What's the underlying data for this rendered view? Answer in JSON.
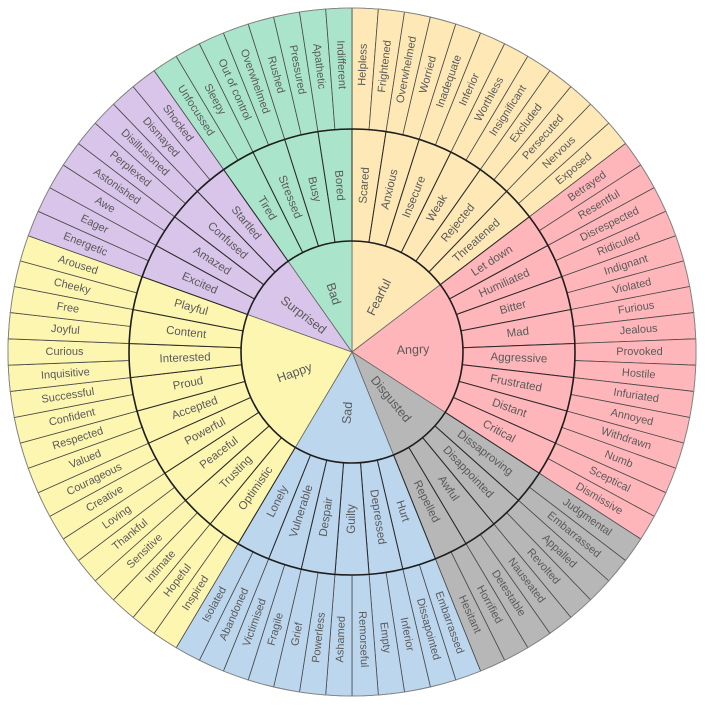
{
  "wheel": {
    "cores": [
      {
        "name": "Fearful",
        "color": "#fde8b6",
        "children": [
          {
            "name": "Scared",
            "leaves": [
              "Helpless",
              "Frightened"
            ]
          },
          {
            "name": "Anxious",
            "leaves": [
              "Overwhelmed",
              "Worried"
            ]
          },
          {
            "name": "Insecure",
            "leaves": [
              "Inadequate",
              "Inferior"
            ]
          },
          {
            "name": "Weak",
            "leaves": [
              "Worthless",
              "Insignificant"
            ]
          },
          {
            "name": "Rejected",
            "leaves": [
              "Excluded",
              "Persecuted"
            ]
          },
          {
            "name": "Threatened",
            "leaves": [
              "Nervous",
              "Exposed"
            ]
          }
        ]
      },
      {
        "name": "Angry",
        "color": "#ffb6ba",
        "children": [
          {
            "name": "Let down",
            "leaves": [
              "Betrayed",
              "Resentful"
            ]
          },
          {
            "name": "Humiliated",
            "leaves": [
              "Disrespected",
              "Ridiculed"
            ]
          },
          {
            "name": "Bitter",
            "leaves": [
              "Indignant",
              "Violated"
            ]
          },
          {
            "name": "Mad",
            "leaves": [
              "Furious",
              "Jealous"
            ]
          },
          {
            "name": "Aggressive",
            "leaves": [
              "Provoked",
              "Hostile"
            ]
          },
          {
            "name": "Frustrated",
            "leaves": [
              "Infuriated",
              "Annoyed"
            ]
          },
          {
            "name": "Distant",
            "leaves": [
              "Withdrawn",
              "Numb"
            ]
          },
          {
            "name": "Critical",
            "leaves": [
              "Sceptical",
              "Dismissive"
            ]
          }
        ]
      },
      {
        "name": "Disgusted",
        "color": "#b7b7b7",
        "children": [
          {
            "name": "Dissaproving",
            "leaves": [
              "Judgmental",
              "Embarrassed"
            ]
          },
          {
            "name": "Disappointed",
            "leaves": [
              "Appalled",
              "Revolted"
            ]
          },
          {
            "name": "Awful",
            "leaves": [
              "Nauseated",
              "Detestable"
            ]
          },
          {
            "name": "Repelled",
            "leaves": [
              "Horrified",
              "Hesitant"
            ]
          }
        ]
      },
      {
        "name": "Sad",
        "color": "#bcd6ee",
        "children": [
          {
            "name": "Hurt",
            "leaves": [
              "Embarrassed",
              "Dissapointed"
            ]
          },
          {
            "name": "Depressed",
            "leaves": [
              "Inferior",
              "Empty"
            ]
          },
          {
            "name": "Guilty",
            "leaves": [
              "Remorseful",
              "Ashamed"
            ]
          },
          {
            "name": "Despair",
            "leaves": [
              "Powerless",
              "Grief"
            ]
          },
          {
            "name": "Vulnerable",
            "leaves": [
              "Fragile",
              "Victimised"
            ]
          },
          {
            "name": "Lonely",
            "leaves": [
              "Abandoned",
              "Isolated"
            ]
          }
        ]
      },
      {
        "name": "Happy",
        "color": "#fdf6b0",
        "children": [
          {
            "name": "Optimistic",
            "leaves": [
              "Inspired",
              "Hopeful"
            ]
          },
          {
            "name": "Trusting",
            "leaves": [
              "Intimate",
              "Sensitive"
            ]
          },
          {
            "name": "Peaceful",
            "leaves": [
              "Thankful",
              "Loving"
            ]
          },
          {
            "name": "Powerful",
            "leaves": [
              "Creative",
              "Courageous"
            ]
          },
          {
            "name": "Accepted",
            "leaves": [
              "Valued",
              "Respected"
            ]
          },
          {
            "name": "Proud",
            "leaves": [
              "Confident",
              "Successful"
            ]
          },
          {
            "name": "Interested",
            "leaves": [
              "Inquisitive",
              "Curious"
            ]
          },
          {
            "name": "Content",
            "leaves": [
              "Joyful",
              "Free"
            ]
          },
          {
            "name": "Playful",
            "leaves": [
              "Cheeky",
              "Aroused"
            ]
          }
        ]
      },
      {
        "name": "Surprised",
        "color": "#d9c4ea",
        "children": [
          {
            "name": "Excited",
            "leaves": [
              "Energetic",
              "Eager"
            ]
          },
          {
            "name": "Amazed",
            "leaves": [
              "Awe",
              "Astonished"
            ]
          },
          {
            "name": "Confused",
            "leaves": [
              "Perplexed",
              "Disillusioned"
            ]
          },
          {
            "name": "Startled",
            "leaves": [
              "Dismayed",
              "Shocked"
            ]
          }
        ]
      },
      {
        "name": "Bad",
        "color": "#aae5cb",
        "children": [
          {
            "name": "Tired",
            "leaves": [
              "Unfocussed",
              "Sleepy"
            ]
          },
          {
            "name": "Stressed",
            "leaves": [
              "Out of control",
              "Overwhelmed"
            ]
          },
          {
            "name": "Busy",
            "leaves": [
              "Rushed",
              "Pressured"
            ]
          },
          {
            "name": "Bored",
            "leaves": [
              "Apathetic",
              "Indifferent"
            ]
          }
        ]
      }
    ]
  }
}
